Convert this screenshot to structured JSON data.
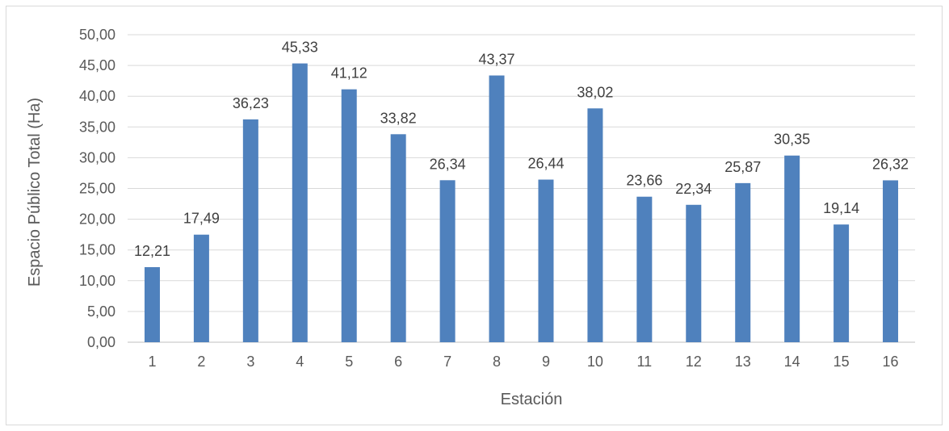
{
  "chart_data": {
    "type": "bar",
    "title": "",
    "xlabel": "Estación",
    "ylabel": "Espacio Público Total (Ha)",
    "categories": [
      "1",
      "2",
      "3",
      "4",
      "5",
      "6",
      "7",
      "8",
      "9",
      "10",
      "11",
      "12",
      "13",
      "14",
      "15",
      "16"
    ],
    "values": [
      12.21,
      17.49,
      36.23,
      45.33,
      41.12,
      33.82,
      26.34,
      43.37,
      26.44,
      38.02,
      23.66,
      22.34,
      25.87,
      30.35,
      19.14,
      26.32
    ],
    "data_labels": [
      "12,21",
      "17,49",
      "36,23",
      "45,33",
      "41,12",
      "33,82",
      "26,34",
      "43,37",
      "26,44",
      "38,02",
      "23,66",
      "22,34",
      "25,87",
      "30,35",
      "19,14",
      "26,32"
    ],
    "yticks": [
      "0,00",
      "5,00",
      "10,00",
      "15,00",
      "20,00",
      "25,00",
      "30,00",
      "35,00",
      "40,00",
      "45,00",
      "50,00"
    ],
    "ylim": [
      0,
      50
    ],
    "ystep": 5,
    "grid": true,
    "legend": "none",
    "bar_color": "#4f81bd",
    "grid_color": "#d9d9d9"
  }
}
